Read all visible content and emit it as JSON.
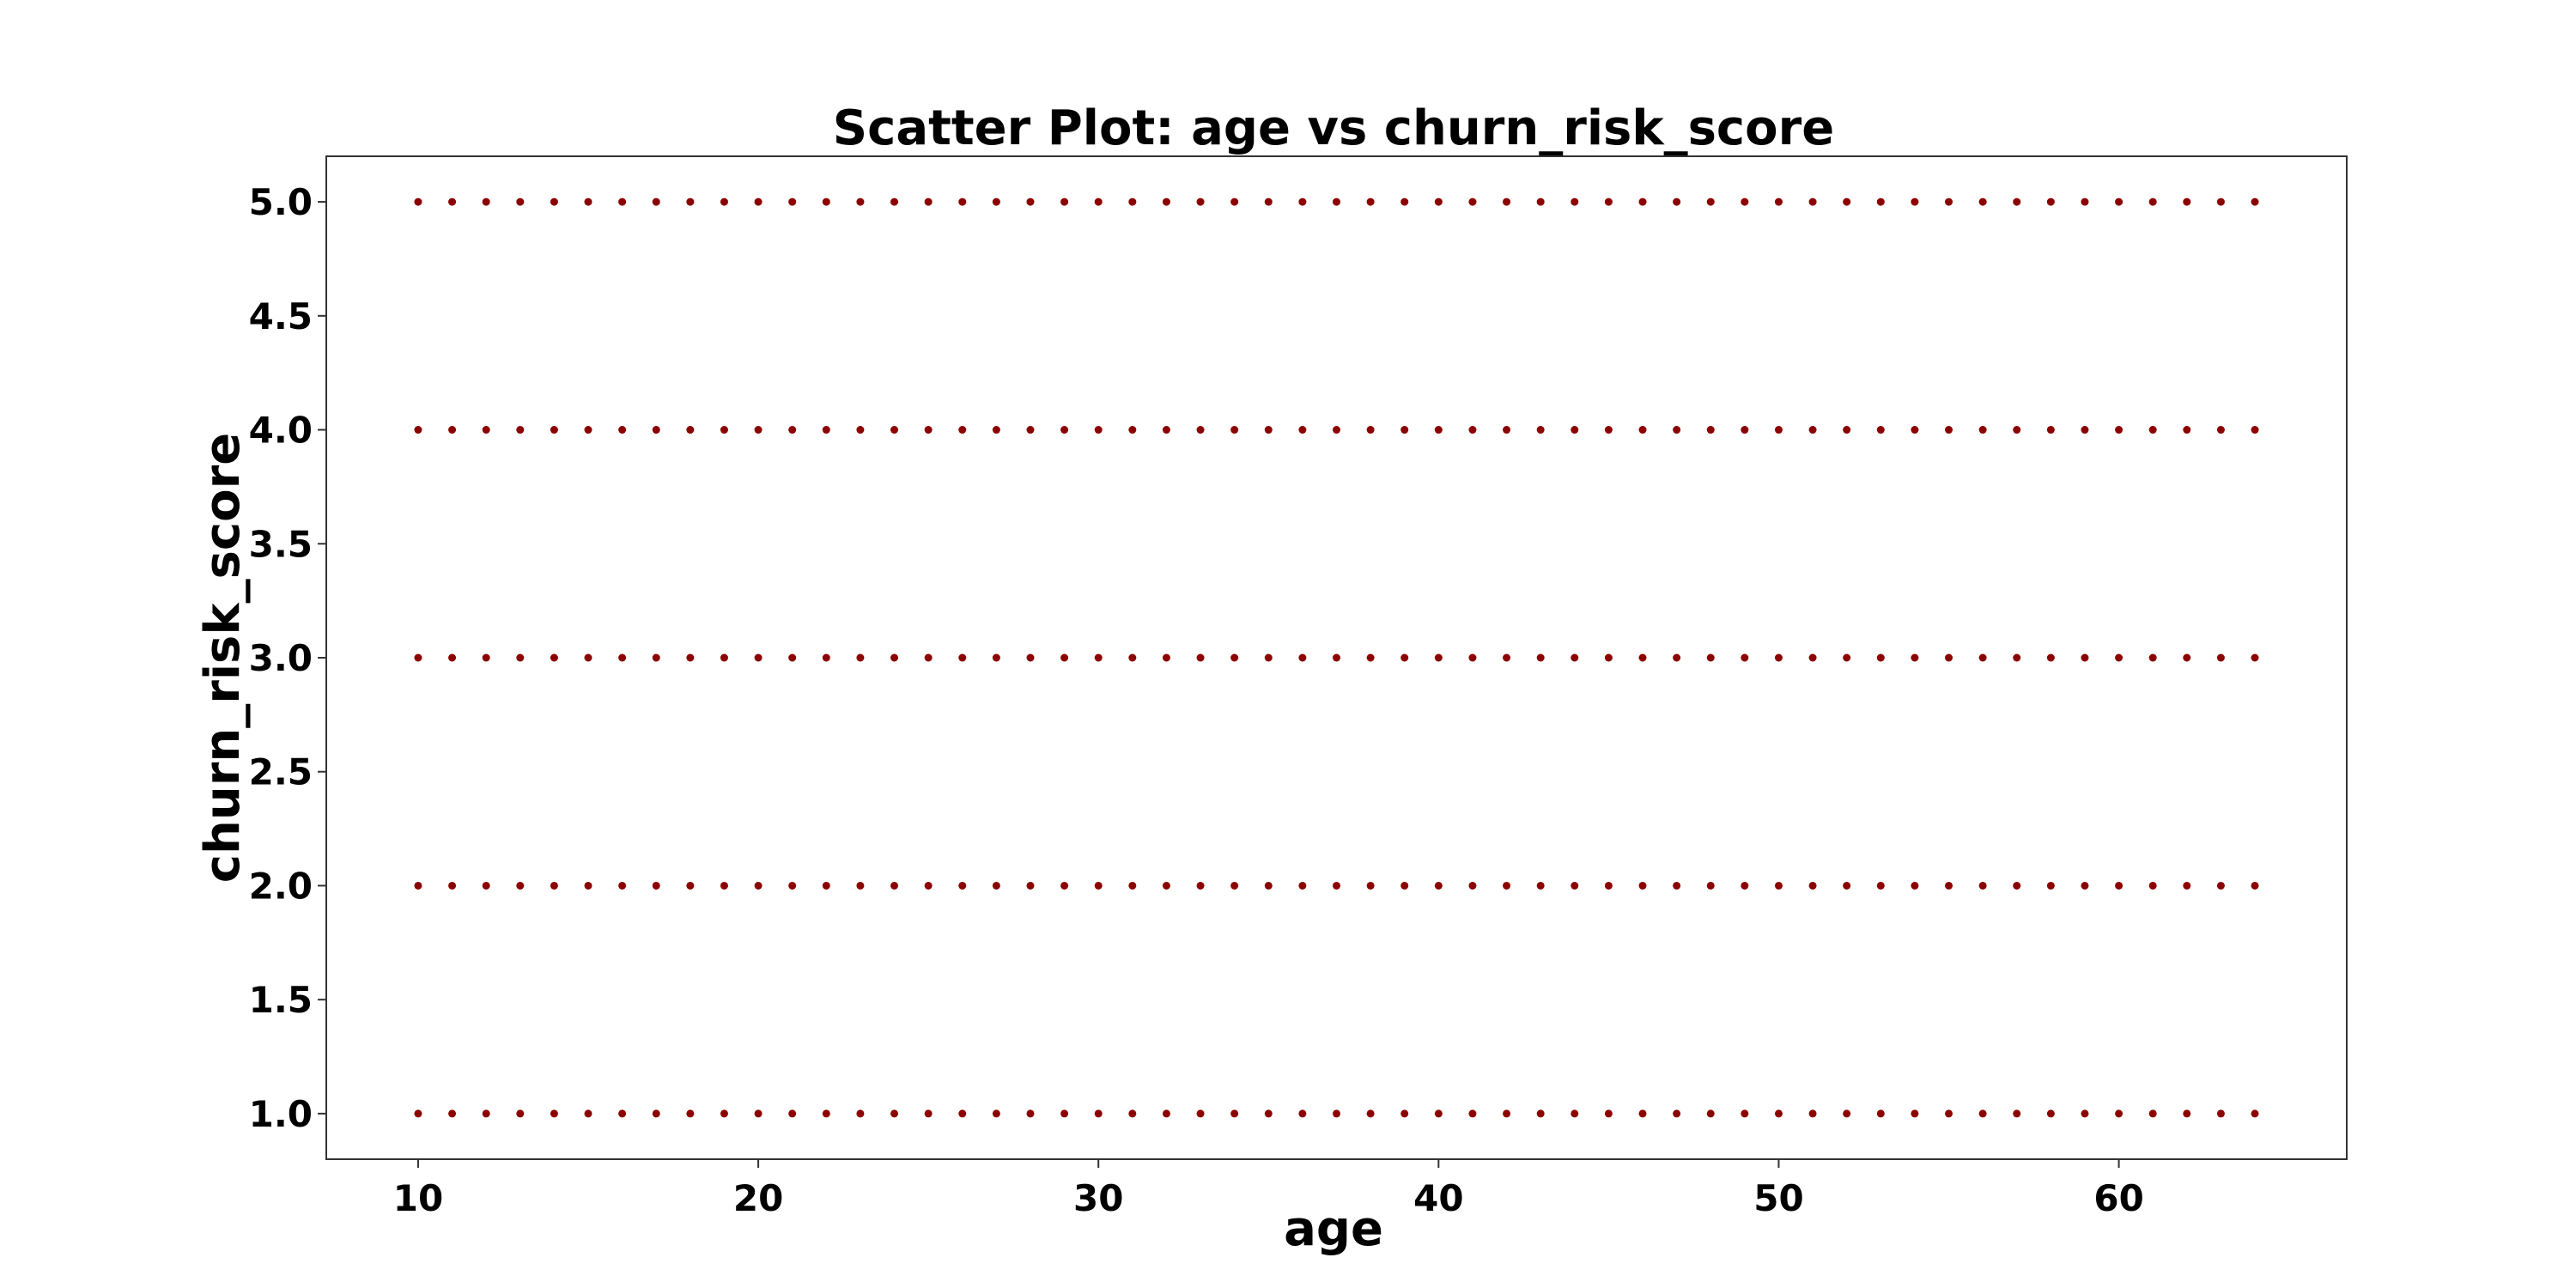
{
  "chart_data": {
    "type": "scatter",
    "title": "Scatter Plot: age vs churn_risk_score",
    "xlabel": "age",
    "ylabel": "churn_risk_score",
    "xlim": [
      7.3,
      66.7
    ],
    "ylim": [
      0.8,
      5.2
    ],
    "xticks": [
      10,
      20,
      30,
      40,
      50,
      60
    ],
    "xtick_labels": [
      "10",
      "20",
      "30",
      "40",
      "50",
      "60"
    ],
    "yticks": [
      1.0,
      1.5,
      2.0,
      2.5,
      3.0,
      3.5,
      4.0,
      4.5,
      5.0
    ],
    "ytick_labels": [
      "1.0",
      "1.5",
      "2.0",
      "2.5",
      "3.0",
      "3.5",
      "4.0",
      "4.5",
      "5.0"
    ],
    "grid": false,
    "legend": false,
    "marker_color": "#8b0000",
    "series": [
      {
        "x_range": [
          10,
          64
        ],
        "x_step": 1,
        "y_values": [
          1,
          2,
          3,
          4,
          5
        ]
      }
    ]
  }
}
